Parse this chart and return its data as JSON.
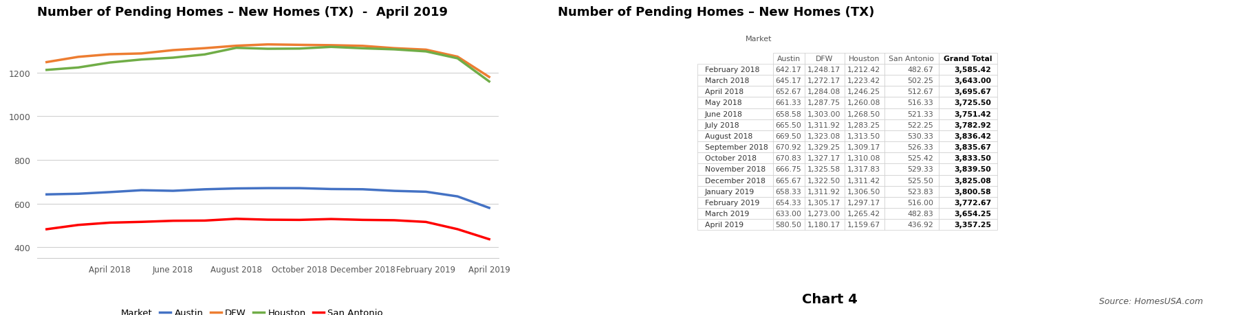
{
  "title_left": "Number of Pending Homes – New Homes (TX)  -  April 2019",
  "title_right": "Number of Pending Homes – New Homes (TX)",
  "chart4_label": "Chart 4",
  "source_label": "Source: HomesUSA.com",
  "months": [
    "February 2018",
    "March 2018",
    "April 2018",
    "May 2018",
    "June 2018",
    "July 2018",
    "August 2018",
    "September 2018",
    "October 2018",
    "November 2018",
    "December 2018",
    "January 2019",
    "February 2019",
    "March 2019",
    "April 2019"
  ],
  "austin": [
    642.17,
    645.17,
    652.67,
    661.33,
    658.58,
    665.5,
    669.5,
    670.92,
    670.83,
    666.75,
    665.67,
    658.33,
    654.33,
    633.0,
    580.5
  ],
  "dfw": [
    1248.17,
    1272.17,
    1284.08,
    1287.75,
    1303.0,
    1311.92,
    1323.08,
    1329.25,
    1327.17,
    1325.58,
    1322.5,
    1311.92,
    1305.17,
    1273.0,
    1180.17
  ],
  "houston": [
    1212.42,
    1223.42,
    1246.25,
    1260.08,
    1268.5,
    1283.25,
    1313.5,
    1309.17,
    1310.08,
    1317.83,
    1311.42,
    1306.5,
    1297.17,
    1265.42,
    1159.67
  ],
  "san_antonio": [
    482.67,
    502.25,
    512.67,
    516.33,
    521.33,
    522.25,
    530.33,
    526.33,
    525.42,
    529.33,
    525.5,
    523.83,
    516.0,
    482.83,
    436.92
  ],
  "grand_total": [
    3585.42,
    3643.0,
    3695.67,
    3725.5,
    3751.42,
    3782.92,
    3836.42,
    3835.67,
    3833.5,
    3839.5,
    3825.08,
    3800.58,
    3772.67,
    3654.25,
    3357.25
  ],
  "color_austin": "#4472c4",
  "color_dfw": "#ed7d31",
  "color_houston": "#70ad47",
  "color_san_antonio": "#ff0000",
  "line_width": 2.5,
  "yticks": [
    400,
    600,
    800,
    1000,
    1200
  ],
  "xtick_labels": [
    "April 2018",
    "June 2018",
    "August 2018",
    "October 2018",
    "December 2018",
    "February 2019",
    "April 2019"
  ],
  "xtick_indices": [
    2,
    4,
    6,
    8,
    10,
    12,
    14
  ],
  "bg_color": "#ffffff",
  "grid_color": "#d0d0d0",
  "table_header_market": "Market",
  "table_col_headers": [
    "Austin",
    "DFW",
    "Houston",
    "San Antonio",
    "Grand Total"
  ]
}
